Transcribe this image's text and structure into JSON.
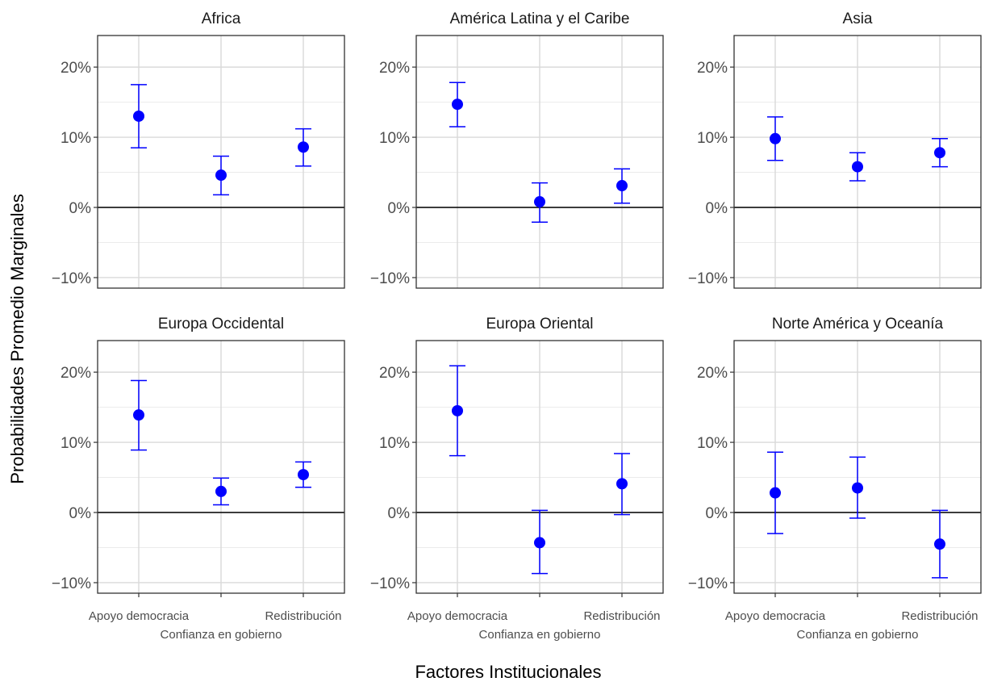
{
  "chart_data": {
    "type": "scatter",
    "subtype": "point-errorbar facets",
    "xlabel": "Factores Institucionales",
    "ylabel": "Probabilidades Promedio Marginales",
    "ylim": [
      -0.115,
      0.245
    ],
    "y_ticks": [
      -0.1,
      0.0,
      0.1,
      0.2
    ],
    "y_tick_labels": [
      "−10%",
      "0%",
      "10%",
      "20%"
    ],
    "y_tick_format": "percent",
    "categories": [
      "Apoyo democracia",
      "Confianza en gobierno",
      "Redistribución"
    ],
    "reference_line_y": 0,
    "grid": true,
    "point_color": "#0000FF",
    "panels": [
      {
        "title": "Africa",
        "values": [
          0.13,
          0.046,
          0.086
        ],
        "lower": [
          0.085,
          0.018,
          0.059
        ],
        "upper": [
          0.175,
          0.073,
          0.112
        ]
      },
      {
        "title": "América Latina y el Caribe",
        "values": [
          0.147,
          0.008,
          0.031
        ],
        "lower": [
          0.115,
          -0.021,
          0.006
        ],
        "upper": [
          0.178,
          0.035,
          0.055
        ]
      },
      {
        "title": "Asia",
        "values": [
          0.098,
          0.058,
          0.078
        ],
        "lower": [
          0.067,
          0.038,
          0.058
        ],
        "upper": [
          0.129,
          0.078,
          0.098
        ]
      },
      {
        "title": "Europa Occidental",
        "values": [
          0.139,
          0.03,
          0.054
        ],
        "lower": [
          0.089,
          0.011,
          0.036
        ],
        "upper": [
          0.188,
          0.049,
          0.072
        ]
      },
      {
        "title": "Europa Oriental",
        "values": [
          0.145,
          -0.043,
          0.041
        ],
        "lower": [
          0.081,
          -0.087,
          -0.003
        ],
        "upper": [
          0.209,
          0.003,
          0.084
        ]
      },
      {
        "title": "Norte América y Oceanía",
        "values": [
          0.028,
          0.035,
          -0.045
        ],
        "lower": [
          -0.03,
          -0.008,
          -0.093
        ],
        "upper": [
          0.086,
          0.079,
          0.003
        ]
      }
    ]
  }
}
